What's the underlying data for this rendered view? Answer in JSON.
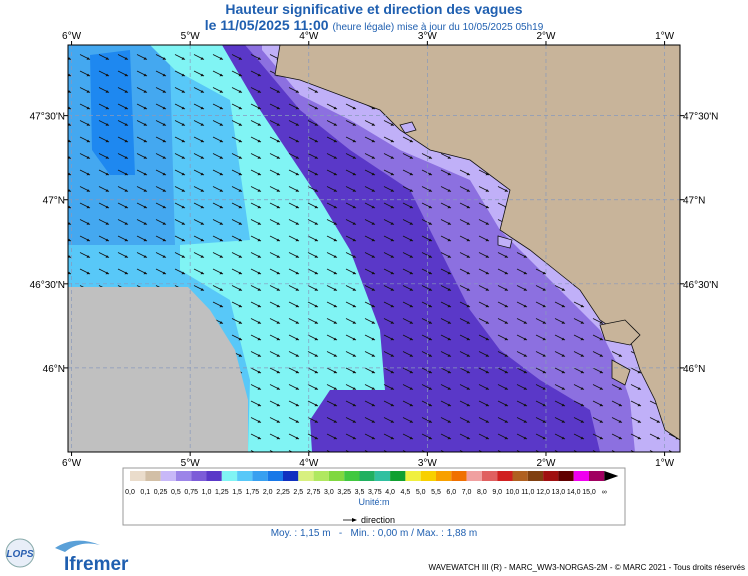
{
  "header": {
    "title": "Hauteur significative et direction des vagues",
    "date": "le 11/05/2025 11:00",
    "note": "(heure légale) mise à jour du 10/05/2025 05h19"
  },
  "map": {
    "xlim": [
      -6.03,
      -0.87
    ],
    "ylim": [
      45.5,
      47.92
    ],
    "xticks": [
      {
        "value": -6,
        "label": "6°W"
      },
      {
        "value": -5,
        "label": "5°W"
      },
      {
        "value": -4,
        "label": "4°W"
      },
      {
        "value": -3,
        "label": "3°W"
      },
      {
        "value": -2,
        "label": "2°W"
      },
      {
        "value": -1,
        "label": "1°W"
      }
    ],
    "yticks": [
      {
        "value": 47.5,
        "label": "47°30'N"
      },
      {
        "value": 47,
        "label": "47°N"
      },
      {
        "value": 46.5,
        "label": "46°30'N"
      },
      {
        "value": 46,
        "label": "46°N"
      }
    ],
    "grid": true
  },
  "legend": {
    "labels": [
      "0,0",
      "0,1",
      "0,25",
      "0,5",
      "0,75",
      "1,0",
      "1,25",
      "1,5",
      "1,75",
      "2,0",
      "2,25",
      "2,5",
      "2,75",
      "3,0",
      "3,25",
      "3,5",
      "3,75",
      "4,0",
      "4,5",
      "5,0",
      "5,5",
      "6,0",
      "7,0",
      "8,0",
      "9,0",
      "10,0",
      "11,0",
      "12,0",
      "13,0",
      "14,0",
      "15,0",
      "∞"
    ],
    "colors": [
      "#eadccb",
      "#d2bfa6",
      "#c8b8f8",
      "#9c84e8",
      "#7c5cd8",
      "#5a38c8",
      "#80f4f4",
      "#58c8f8",
      "#38a0f0",
      "#1878e8",
      "#1030c0",
      "#d8f080",
      "#b0e860",
      "#80d840",
      "#40c840",
      "#20b060",
      "#30c0a0",
      "#10a030",
      "#f0f040",
      "#f8d000",
      "#f8a000",
      "#f07000",
      "#f0a0a0",
      "#e06060",
      "#d02020",
      "#b06020",
      "#804010",
      "#a01010",
      "#600000",
      "#f000f0",
      "#a00060"
    ],
    "unit": "Unité:m",
    "direction": "direction"
  },
  "stats": "Moy. : 1,15 m   -   Min. : 0,00 m / Max. : 1,88 m",
  "footer": "WAVEWATCH III (R) - MARC_WW3-NORGAS-2M - © MARC 2021 - Tous droits réservés",
  "logos": {
    "lops": "LOPS",
    "ifremer": "Ifremer"
  }
}
